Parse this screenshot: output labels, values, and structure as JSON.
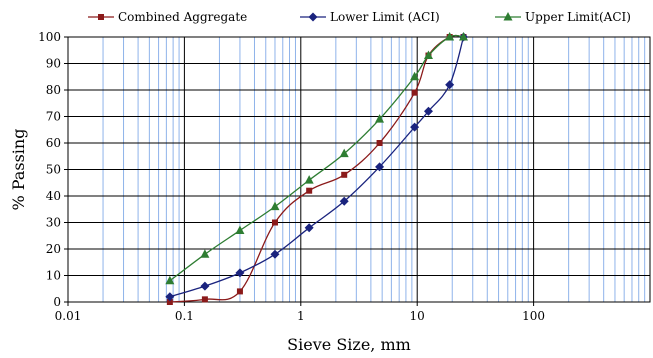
{
  "chart_data": {
    "type": "line",
    "xlabel": "Sieve Size, mm",
    "ylabel": "% Passing",
    "xscale": "log",
    "xlim": [
      0.01,
      1000
    ],
    "ylim": [
      0,
      100
    ],
    "x_tick_labels": [
      "0.01",
      "0.1",
      "1",
      "10",
      "100"
    ],
    "y_tick_labels": [
      "0",
      "10",
      "20",
      "30",
      "40",
      "50",
      "60",
      "70",
      "80",
      "90",
      "100"
    ],
    "grid": true,
    "legend_position": "top",
    "series": [
      {
        "name": "Combined Aggregate",
        "color": "#8b1a1a",
        "marker": "square",
        "x": [
          0.075,
          0.15,
          0.3,
          0.6,
          1.18,
          2.36,
          4.75,
          9.5,
          12.5,
          19,
          25
        ],
        "y": [
          0,
          1,
          4,
          30,
          42,
          48,
          60,
          79,
          93,
          100,
          100
        ]
      },
      {
        "name": "Lower Limit (ACI)",
        "color": "#1a237e",
        "marker": "diamond",
        "x": [
          0.075,
          0.15,
          0.3,
          0.6,
          1.18,
          2.36,
          4.75,
          9.5,
          12.5,
          19,
          25
        ],
        "y": [
          2,
          6,
          11,
          18,
          28,
          38,
          51,
          66,
          72,
          82,
          100
        ]
      },
      {
        "name": "Upper Limit(ACI)",
        "color": "#2e7d32",
        "marker": "triangle",
        "x": [
          0.075,
          0.15,
          0.3,
          0.6,
          1.18,
          2.36,
          4.75,
          9.5,
          12.5,
          19,
          25
        ],
        "y": [
          8,
          18,
          27,
          36,
          46,
          56,
          69,
          85,
          93,
          100,
          100
        ]
      }
    ]
  }
}
